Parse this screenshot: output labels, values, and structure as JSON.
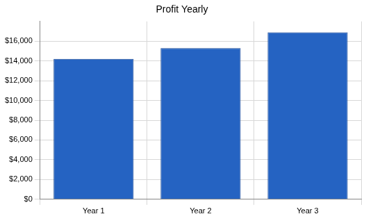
{
  "chart_data": {
    "type": "bar",
    "title": "Profit Yearly",
    "categories": [
      "Year 1",
      "Year 2",
      "Year 3"
    ],
    "values": [
      14200,
      15300,
      16900
    ],
    "color": "#2563c2",
    "ylim": [
      0,
      18000
    ],
    "yticks": [
      {
        "value": 0,
        "label": "$0"
      },
      {
        "value": 2000,
        "label": "$2,000"
      },
      {
        "value": 4000,
        "label": "$4,000"
      },
      {
        "value": 6000,
        "label": "$6,000"
      },
      {
        "value": 8000,
        "label": "$8,000"
      },
      {
        "value": 10000,
        "label": "$10,000"
      },
      {
        "value": 12000,
        "label": "$12,000"
      },
      {
        "value": 14000,
        "label": "$14,000"
      },
      {
        "value": 16000,
        "label": "$16,000"
      }
    ],
    "grid": true
  }
}
